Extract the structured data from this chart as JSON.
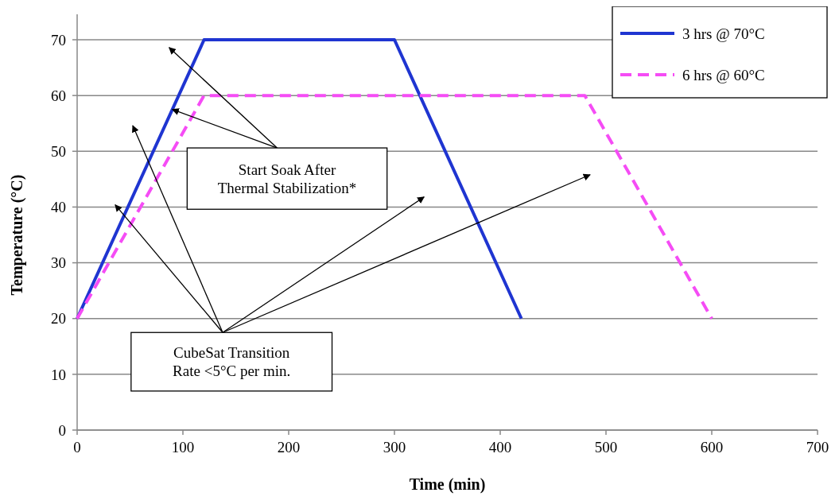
{
  "chart_data": {
    "type": "line",
    "xlabel": "Time (min)",
    "ylabel": "Temperature (°C)",
    "xlim": [
      0,
      700
    ],
    "xticks": [
      0,
      100,
      200,
      300,
      400,
      500,
      600,
      700
    ],
    "ylim": [
      0,
      70
    ],
    "yticks": [
      0,
      10,
      20,
      30,
      40,
      50,
      60,
      70
    ],
    "grid": "y",
    "legend": "top right",
    "marker": "none",
    "series": [
      {
        "name": "3 hrs @ 70°C",
        "color": "#1f35d1",
        "x": [
          0,
          120,
          300,
          420
        ],
        "values": [
          20,
          70,
          70,
          20
        ],
        "line_style": "solid"
      },
      {
        "name": "6 hrs @ 60°C",
        "color": "#f54cf5",
        "x": [
          0,
          120,
          480,
          600
        ],
        "values": [
          20,
          60,
          60,
          20
        ],
        "line_style": "dashed"
      }
    ],
    "annotations": [
      {
        "text": "Start Soak After Thermal Stabilization*",
        "x": 90,
        "y": 57.5
      },
      "CubeSat Transition Rate <5°C per min."
    ]
  }
}
